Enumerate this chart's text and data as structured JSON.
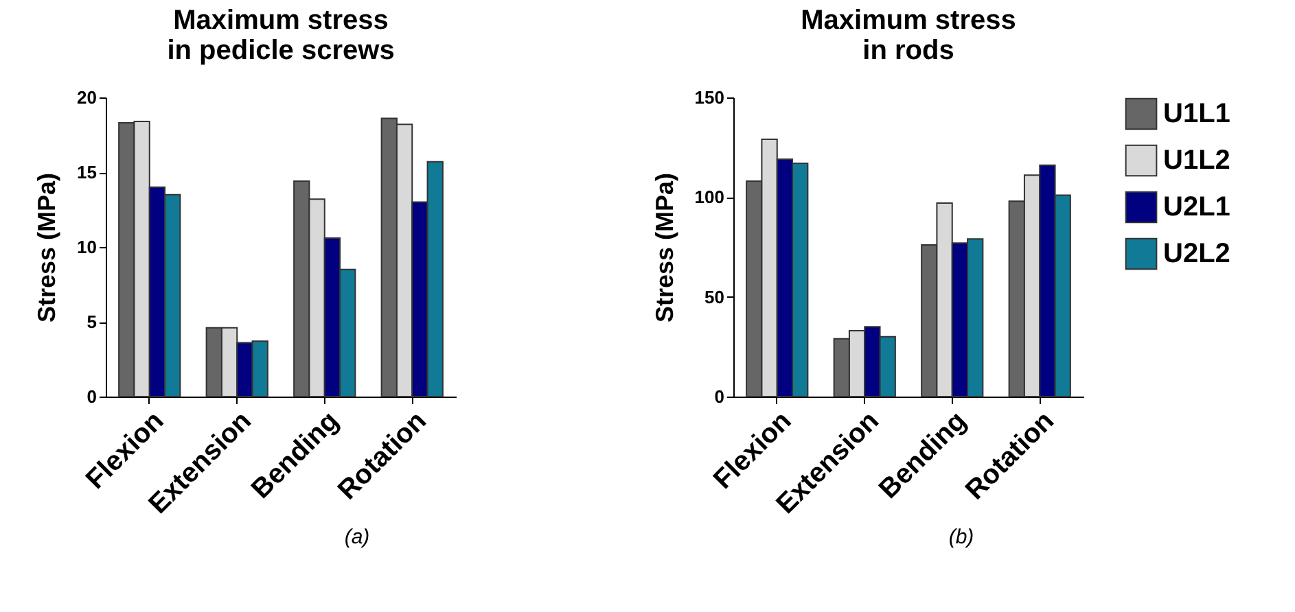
{
  "chart_data": [
    {
      "type": "bar",
      "title": "Maximum stress\nin pedicle screws",
      "ylabel": "Stress (MPa)",
      "categories": [
        "Flexion",
        "Extension",
        "Bending",
        "Rotation"
      ],
      "ylim": [
        0,
        20
      ],
      "yticks": [
        0,
        5,
        10,
        15,
        20
      ],
      "grid": false,
      "annotations": [
        "(a)"
      ],
      "series": [
        {
          "color": "#666666",
          "values": [
            18.3,
            4.6,
            14.4,
            18.6
          ]
        },
        {
          "color": "#d9d9d9",
          "values": [
            18.4,
            4.6,
            13.2,
            18.2
          ]
        },
        {
          "color": "#000080",
          "values": [
            14.0,
            3.6,
            10.6,
            13.0
          ]
        },
        {
          "color": "#117a96",
          "values": [
            13.5,
            3.7,
            8.5,
            15.7
          ]
        }
      ]
    },
    {
      "type": "bar",
      "title": "Maximum stress\nin rods",
      "ylabel": "Stress (MPa)",
      "categories": [
        "Flexion",
        "Extension",
        "Bending",
        "Rotation"
      ],
      "ylim": [
        0,
        150
      ],
      "yticks": [
        0,
        50,
        100,
        150
      ],
      "grid": false,
      "legend": "right",
      "annotations": [
        "(b)"
      ],
      "series": [
        {
          "name": "U1L1",
          "color": "#666666",
          "values": [
            108,
            29,
            76,
            98
          ]
        },
        {
          "name": "U1L2",
          "color": "#d9d9d9",
          "values": [
            129,
            33,
            97,
            111
          ]
        },
        {
          "name": "U2L1",
          "color": "#000080",
          "values": [
            119,
            35,
            77,
            116
          ]
        },
        {
          "name": "U2L2",
          "color": "#117a96",
          "values": [
            117,
            30,
            79,
            101
          ]
        }
      ]
    }
  ]
}
